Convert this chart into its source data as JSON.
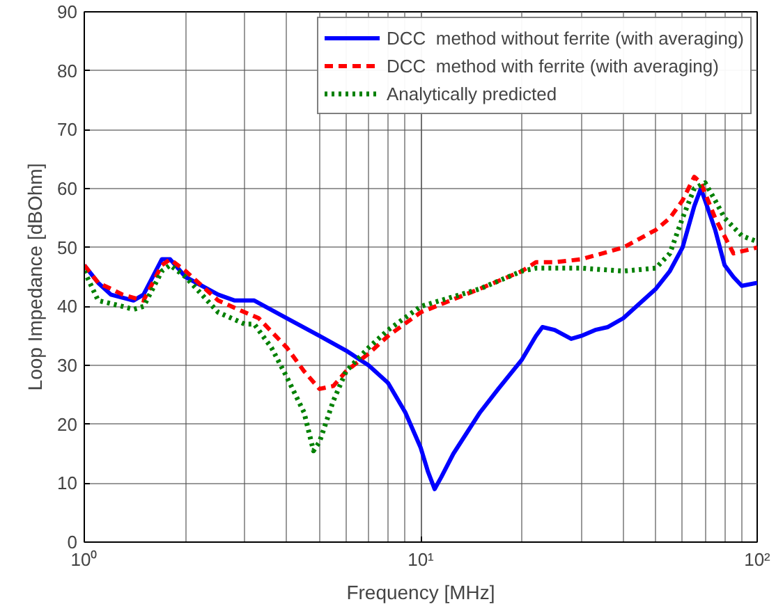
{
  "chart_data": {
    "type": "line",
    "xlabel": "Frequency [MHz]",
    "ylabel": "Loop Impedance [dBOhm]",
    "log": "x",
    "grid": true,
    "legend": "top right",
    "xlim": [
      1,
      100
    ],
    "xticks": [
      {
        "value": 1,
        "label": "10⁰"
      },
      {
        "value": 10,
        "label": "10¹"
      },
      {
        "value": 100,
        "label": "10²"
      }
    ],
    "ylim": [
      0,
      90
    ],
    "yticks": [
      0,
      10,
      20,
      30,
      40,
      50,
      60,
      70,
      80,
      90
    ],
    "series": [
      {
        "name": "DCC  method without ferrite (with averaging)",
        "color": "#0000ff",
        "line_style": "solid",
        "x": [
          1,
          1.1,
          1.2,
          1.4,
          1.5,
          1.7,
          1.8,
          2,
          2.5,
          2.8,
          3.2,
          4,
          5,
          6,
          7,
          8,
          9,
          10,
          10.5,
          11,
          11.5,
          12.5,
          15,
          17,
          20,
          22,
          23,
          25,
          28,
          30,
          33,
          36,
          40,
          50,
          55,
          60,
          65,
          68,
          70,
          75,
          80,
          85,
          90,
          100
        ],
        "values": [
          47,
          44,
          42,
          41,
          42,
          48,
          48,
          45,
          42,
          41,
          41,
          38,
          35,
          32.5,
          30,
          27,
          22,
          16,
          12,
          9,
          11,
          15,
          22,
          26,
          31,
          35,
          36.5,
          36,
          34.5,
          35,
          36,
          36.5,
          38,
          43,
          46,
          50,
          57,
          60,
          58,
          53,
          47,
          45,
          43.5,
          44
        ]
      },
      {
        "name": "DCC  method with ferrite (with averaging)",
        "color": "#ff0000",
        "line_style": "dashed",
        "x": [
          1,
          1.1,
          1.2,
          1.3,
          1.5,
          1.7,
          1.8,
          2,
          2.5,
          3,
          3.3,
          4,
          4.5,
          5,
          5.5,
          6,
          7,
          8,
          10,
          15,
          20,
          22,
          25,
          30,
          40,
          50,
          55,
          60,
          65,
          68,
          75,
          85,
          100
        ],
        "values": [
          47,
          44,
          43,
          42,
          41,
          47,
          48,
          46,
          41,
          39,
          38,
          33,
          29,
          26,
          26.5,
          29,
          32,
          35,
          39,
          43,
          46,
          47.5,
          47.5,
          48,
          50,
          53,
          55,
          58,
          62,
          61,
          55,
          49,
          50
        ]
      },
      {
        "name": "Analytically predicted",
        "color": "#008000",
        "line_style": "dotted",
        "x": [
          1,
          1.1,
          1.3,
          1.4,
          1.5,
          1.7,
          1.8,
          2,
          2.5,
          3,
          3.2,
          3.6,
          4,
          4.5,
          4.8,
          5,
          5.5,
          6,
          7,
          8,
          10,
          15,
          20,
          22,
          25,
          30,
          40,
          50,
          55,
          60,
          65,
          70,
          75,
          80,
          90,
          100
        ],
        "values": [
          46,
          41,
          40,
          39.5,
          40,
          46,
          47,
          45,
          39,
          37,
          37,
          33,
          28,
          22,
          15.5,
          17,
          24,
          29,
          33,
          36,
          40,
          43,
          46,
          46.5,
          46.5,
          46.5,
          46,
          46.5,
          49,
          55,
          60,
          61,
          58,
          55,
          52,
          51
        ]
      }
    ]
  }
}
